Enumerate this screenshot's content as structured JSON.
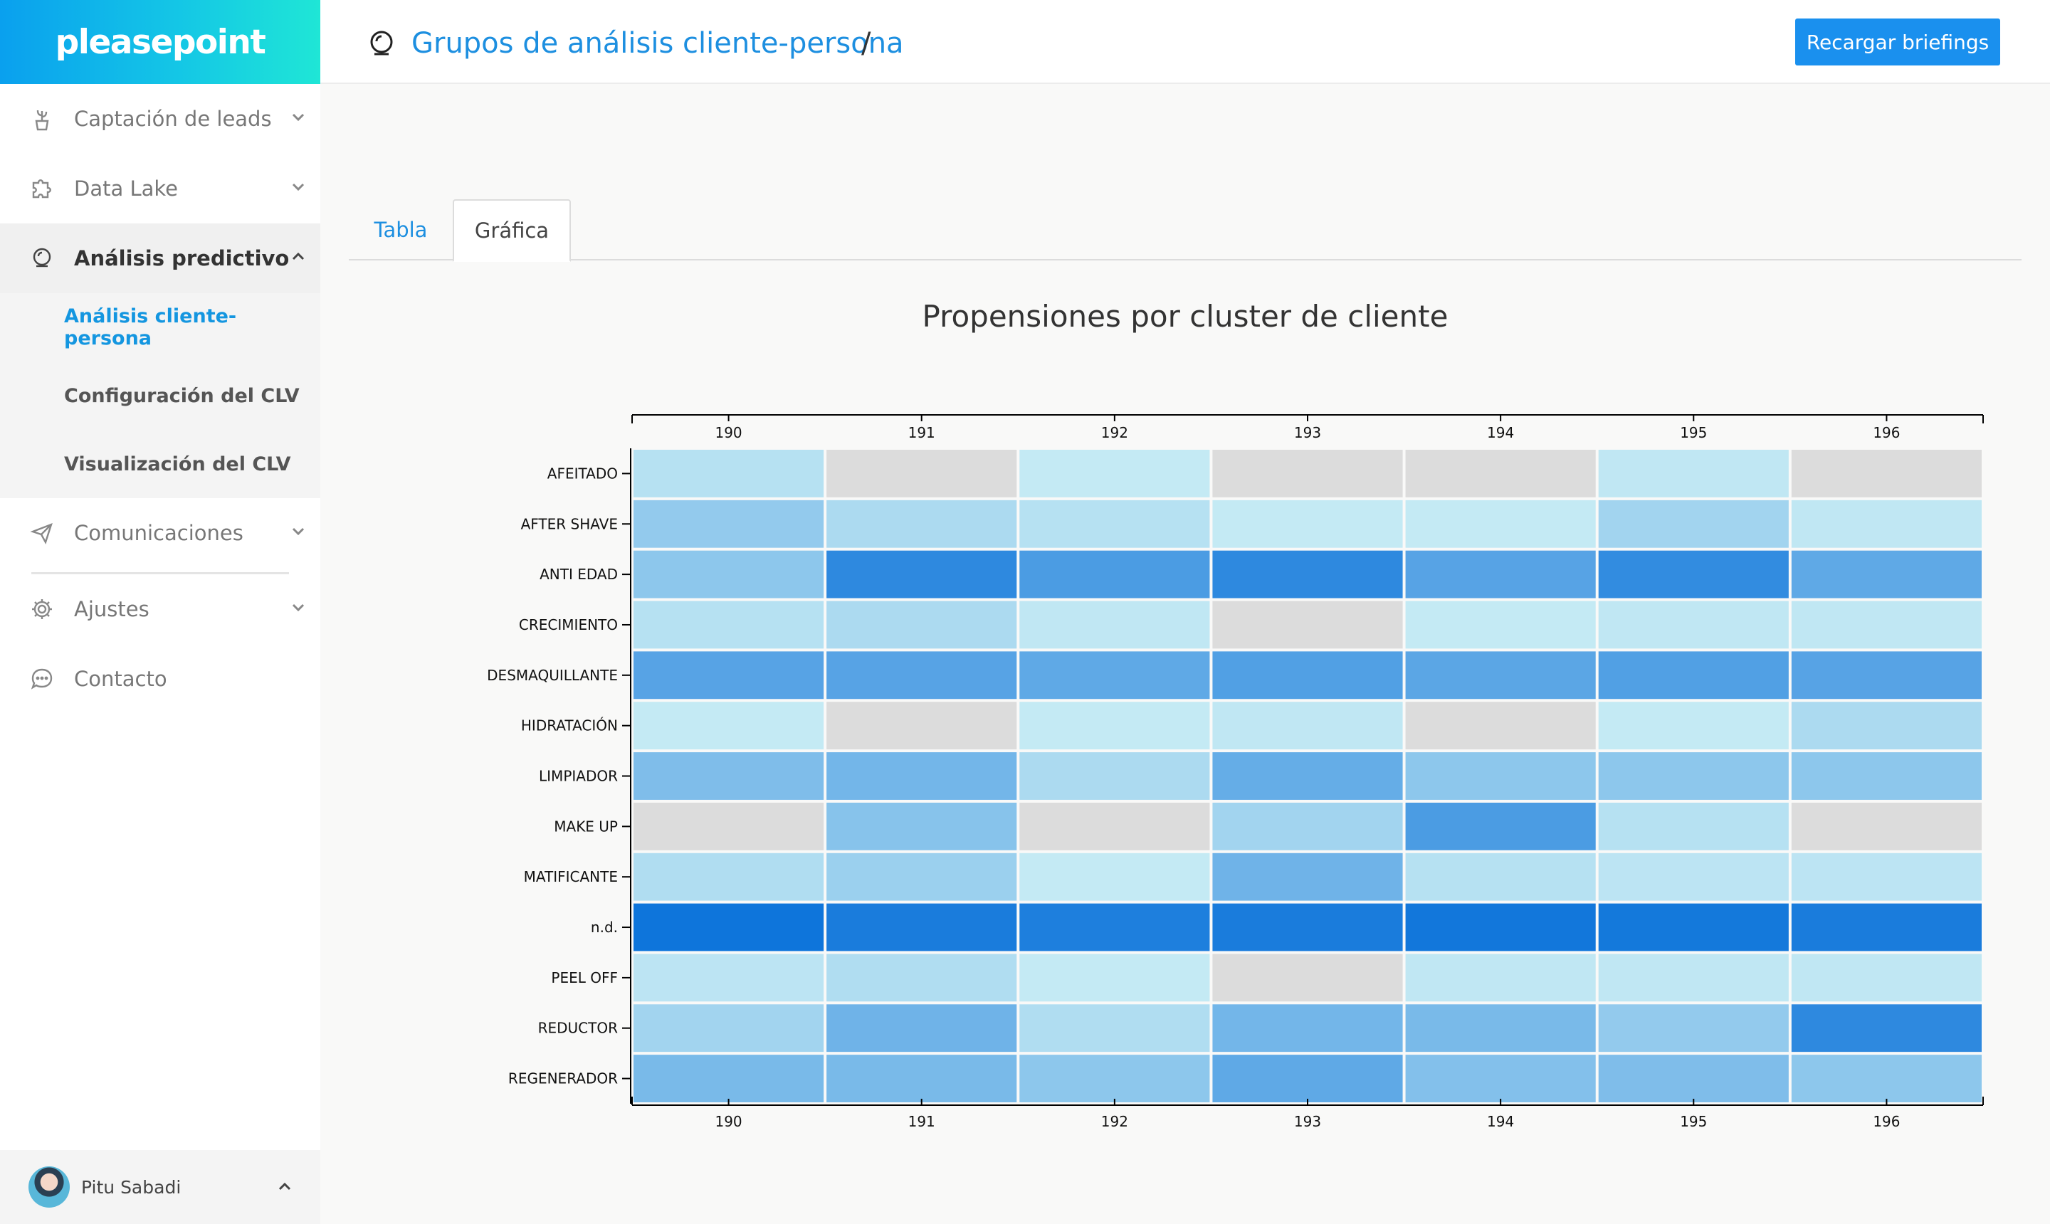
{
  "brand": {
    "logo_text": "pleasepoint"
  },
  "sidebar": {
    "items": [
      {
        "label": "Captación de leads",
        "icon": "cactus-pot-icon"
      },
      {
        "label": "Data Lake",
        "icon": "puzzle-icon"
      },
      {
        "label": "Análisis predictivo",
        "icon": "crystal-ball-icon",
        "expanded": true
      },
      {
        "label": "Comunicaciones",
        "icon": "paper-plane-icon"
      },
      {
        "label": "Ajustes",
        "icon": "gear-icon"
      },
      {
        "label": "Contacto",
        "icon": "chat-bubble-icon"
      }
    ],
    "submenu": [
      {
        "label": "Análisis cliente-persona",
        "active": true
      },
      {
        "label": "Configuración del CLV"
      },
      {
        "label": "Visualización del CLV"
      }
    ]
  },
  "user": {
    "name": "Pitu Sabadi"
  },
  "header": {
    "title": "Grupos de análisis cliente-persona",
    "separator": "/",
    "reload_label": "Recargar briefings"
  },
  "tabs": [
    {
      "label": "Tabla",
      "active": false
    },
    {
      "label": "Gráfica",
      "active": true
    }
  ],
  "colors": {
    "accent": "#1d8fe0",
    "button": "#1a90ee",
    "missing_cell": "#dcdcdc",
    "scale_low": "#d4f4f6",
    "scale_high": "#0a72da"
  },
  "chart_data": {
    "type": "heatmap",
    "title": "Propensiones por cluster de cliente",
    "x_categories": [
      "190",
      "191",
      "192",
      "193",
      "194",
      "195",
      "196"
    ],
    "y_categories": [
      "AFEITADO",
      "AFTER SHAVE",
      "ANTI EDAD",
      "CRECIMIENTO",
      "DESMAQUILLANTE",
      "HIDRATACIÓN",
      "LIMPIADOR",
      "MAKE UP",
      "MATIFICANTE",
      "n.d.",
      "PEEL OFF",
      "REDUCTOR",
      "REGENERADOR"
    ],
    "values": [
      [
        0.15,
        null,
        0.08,
        null,
        null,
        0.1,
        null
      ],
      [
        0.32,
        0.2,
        0.15,
        0.08,
        0.08,
        0.25,
        0.1
      ],
      [
        0.35,
        0.82,
        0.68,
        0.82,
        0.62,
        0.8,
        0.58
      ],
      [
        0.15,
        0.2,
        0.1,
        null,
        0.08,
        0.1,
        0.1
      ],
      [
        0.62,
        0.62,
        0.58,
        0.65,
        0.6,
        0.65,
        0.62
      ],
      [
        0.08,
        null,
        0.08,
        0.1,
        null,
        0.08,
        0.2
      ],
      [
        0.42,
        0.48,
        0.2,
        0.55,
        0.35,
        0.35,
        0.35
      ],
      [
        null,
        0.38,
        null,
        0.25,
        0.68,
        0.15,
        null
      ],
      [
        0.18,
        0.28,
        0.08,
        0.5,
        0.15,
        0.12,
        0.12
      ],
      [
        0.98,
        0.92,
        0.9,
        0.92,
        0.96,
        0.95,
        0.92
      ],
      [
        0.12,
        0.18,
        0.08,
        null,
        0.1,
        0.1,
        0.1
      ],
      [
        0.25,
        0.5,
        0.18,
        0.48,
        0.45,
        0.32,
        0.82
      ],
      [
        0.45,
        0.45,
        0.35,
        0.58,
        0.4,
        0.42,
        0.35
      ]
    ]
  }
}
